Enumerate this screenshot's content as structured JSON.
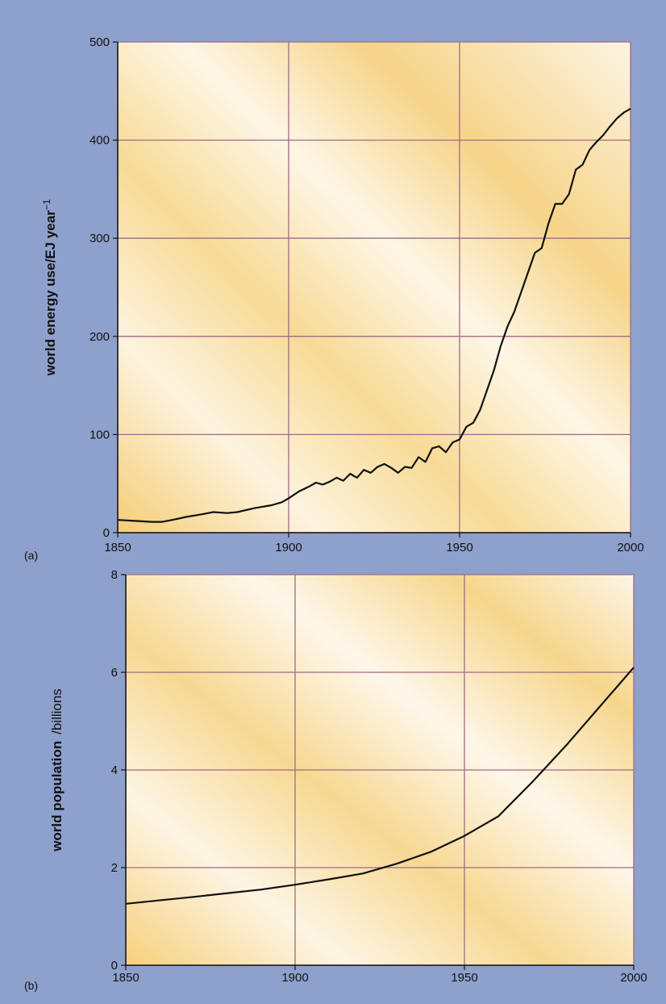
{
  "colors": {
    "background": "#8ea0cc",
    "plot_fill_light": "#fdf7ee",
    "plot_fill_warm": "#f6d58c",
    "grid": "#a06a86",
    "line": "#111111"
  },
  "chart_data": [
    {
      "type": "line",
      "panel_label": "(a)",
      "title": "",
      "xlabel": "",
      "ylabel_main": "world energy use/EJ year",
      "ylabel_unit": "−1",
      "xlim": [
        1850,
        2000
      ],
      "ylim": [
        0,
        500
      ],
      "x_ticks": [
        1850,
        1900,
        1950,
        2000
      ],
      "y_ticks": [
        0,
        100,
        200,
        300,
        400,
        500
      ],
      "x_tick_labels": [
        "1850",
        "1900",
        "1950",
        "2000"
      ],
      "y_tick_labels": [
        "0",
        "100",
        "200",
        "300",
        "400",
        "500"
      ],
      "grid": true,
      "series": [
        {
          "x": [
            1850,
            1855,
            1860,
            1863,
            1866,
            1870,
            1875,
            1878,
            1882,
            1885,
            1890,
            1895,
            1898,
            1900,
            1903,
            1906,
            1908,
            1910,
            1912,
            1914,
            1916,
            1918,
            1920,
            1922,
            1924,
            1926,
            1928,
            1930,
            1932,
            1934,
            1936,
            1938,
            1940,
            1942,
            1944,
            1946,
            1948,
            1950,
            1952,
            1954,
            1956,
            1958,
            1960,
            1962,
            1964,
            1966,
            1968,
            1970,
            1972,
            1974,
            1976,
            1978,
            1980,
            1982,
            1984,
            1986,
            1988,
            1990,
            1992,
            1994,
            1996,
            1998,
            2000
          ],
          "y": [
            13,
            12,
            11,
            11,
            13,
            16,
            19,
            21,
            20,
            21,
            25,
            28,
            31,
            35,
            42,
            47,
            51,
            49,
            52,
            56,
            53,
            60,
            56,
            64,
            61,
            67,
            70,
            66,
            61,
            67,
            66,
            77,
            72,
            86,
            88,
            82,
            92,
            95,
            108,
            112,
            125,
            145,
            165,
            190,
            210,
            225,
            245,
            265,
            285,
            290,
            315,
            335,
            335,
            345,
            370,
            375,
            390,
            398,
            405,
            414,
            422,
            428,
            432
          ]
        }
      ]
    },
    {
      "type": "line",
      "panel_label": "(b)",
      "title": "",
      "xlabel": "",
      "ylabel_main": "world population",
      "ylabel_unit": "/billions",
      "xlim": [
        1850,
        2000
      ],
      "ylim": [
        0,
        8
      ],
      "x_ticks": [
        1850,
        1900,
        1950,
        2000
      ],
      "y_ticks": [
        0,
        2,
        4,
        6,
        8
      ],
      "x_tick_labels": [
        "1850",
        "1900",
        "1950",
        "2000"
      ],
      "y_tick_labels": [
        "0",
        "2",
        "4",
        "6",
        "8"
      ],
      "grid": true,
      "series": [
        {
          "x": [
            1850,
            1870,
            1890,
            1900,
            1910,
            1920,
            1930,
            1940,
            1950,
            1960,
            1970,
            1980,
            1990,
            2000
          ],
          "y": [
            1.26,
            1.4,
            1.55,
            1.65,
            1.76,
            1.88,
            2.08,
            2.32,
            2.65,
            3.05,
            3.75,
            4.5,
            5.3,
            6.1
          ]
        }
      ]
    }
  ]
}
